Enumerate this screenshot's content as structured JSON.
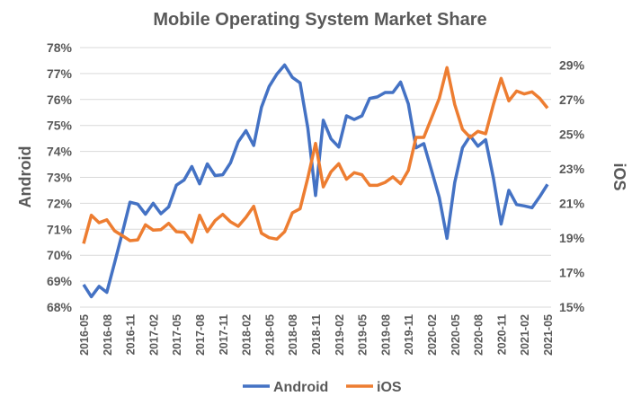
{
  "chart_data": {
    "type": "line",
    "title": "Mobile Operating System Market Share",
    "ylabel_left": "Android",
    "ylabel_right": "iOS",
    "ylim_left": [
      68,
      78
    ],
    "yticks_left": [
      "68%",
      "69%",
      "70%",
      "71%",
      "72%",
      "73%",
      "74%",
      "75%",
      "76%",
      "77%",
      "78%"
    ],
    "ylim_right": [
      15,
      30
    ],
    "yticks_right": [
      "15%",
      "17%",
      "19%",
      "21%",
      "23%",
      "25%",
      "27%",
      "29%"
    ],
    "grid": true,
    "legend_position": "bottom",
    "x": [
      "2016-05",
      "2016-06",
      "2016-07",
      "2016-08",
      "2016-09",
      "2016-10",
      "2016-11",
      "2016-12",
      "2017-01",
      "2017-02",
      "2017-03",
      "2017-04",
      "2017-05",
      "2017-06",
      "2017-07",
      "2017-08",
      "2017-09",
      "2017-10",
      "2017-11",
      "2017-12",
      "2018-01",
      "2018-02",
      "2018-03",
      "2018-04",
      "2018-05",
      "2018-06",
      "2018-07",
      "2018-08",
      "2018-09",
      "2018-10",
      "2018-11",
      "2018-12",
      "2019-01",
      "2019-02",
      "2019-03",
      "2019-04",
      "2019-05",
      "2019-06",
      "2019-07",
      "2019-08",
      "2019-09",
      "2019-10",
      "2019-11",
      "2019-12",
      "2020-01",
      "2020-02",
      "2020-03",
      "2020-04",
      "2020-05",
      "2020-06",
      "2020-07",
      "2020-08",
      "2020-09",
      "2020-10",
      "2020-11",
      "2020-12",
      "2021-01",
      "2021-02",
      "2021-03",
      "2021-04",
      "2021-05"
    ],
    "xtick_labels": [
      "2016-05",
      "2016-08",
      "2016-11",
      "2017-02",
      "2017-05",
      "2017-08",
      "2017-11",
      "2018-02",
      "2018-05",
      "2018-08",
      "2018-11",
      "2019-02",
      "2019-05",
      "2019-08",
      "2019-11",
      "2020-02",
      "2020-05",
      "2020-08",
      "2020-11",
      "2021-02",
      "2021-05"
    ],
    "series": [
      {
        "name": "Android",
        "axis": "left",
        "color": "#4472C4",
        "values": [
          68.87,
          68.4,
          68.8,
          68.57,
          69.7,
          70.85,
          72.04,
          71.97,
          71.58,
          72.0,
          71.6,
          71.86,
          72.7,
          72.9,
          73.42,
          72.75,
          73.52,
          73.07,
          73.1,
          73.56,
          74.37,
          74.8,
          74.23,
          75.7,
          76.5,
          76.98,
          77.33,
          76.85,
          76.64,
          74.9,
          72.3,
          75.2,
          74.48,
          74.17,
          75.37,
          75.23,
          75.37,
          76.04,
          76.1,
          76.27,
          76.27,
          76.67,
          75.83,
          74.14,
          74.3,
          73.27,
          72.23,
          70.65,
          72.8,
          74.14,
          74.6,
          74.2,
          74.45,
          72.98,
          71.2,
          72.5,
          71.95,
          71.9,
          71.83,
          72.26,
          72.73
        ]
      },
      {
        "name": "iOS",
        "axis": "right",
        "color": "#ED7D31",
        "values": [
          18.67,
          20.31,
          19.88,
          20.05,
          19.41,
          19.13,
          18.84,
          18.89,
          19.76,
          19.45,
          19.48,
          19.84,
          19.36,
          19.33,
          18.75,
          20.31,
          19.36,
          20.0,
          20.36,
          19.93,
          19.67,
          20.19,
          20.83,
          19.27,
          19.01,
          18.93,
          19.36,
          20.45,
          20.69,
          22.47,
          24.46,
          21.95,
          22.82,
          23.29,
          22.39,
          22.77,
          22.65,
          22.04,
          22.04,
          22.21,
          22.53,
          22.13,
          22.9,
          24.81,
          24.81,
          25.93,
          27.06,
          28.84,
          26.71,
          25.28,
          24.81,
          25.16,
          25.02,
          26.71,
          28.22,
          26.92,
          27.49,
          27.32,
          27.44,
          27.06,
          26.5
        ]
      }
    ]
  }
}
